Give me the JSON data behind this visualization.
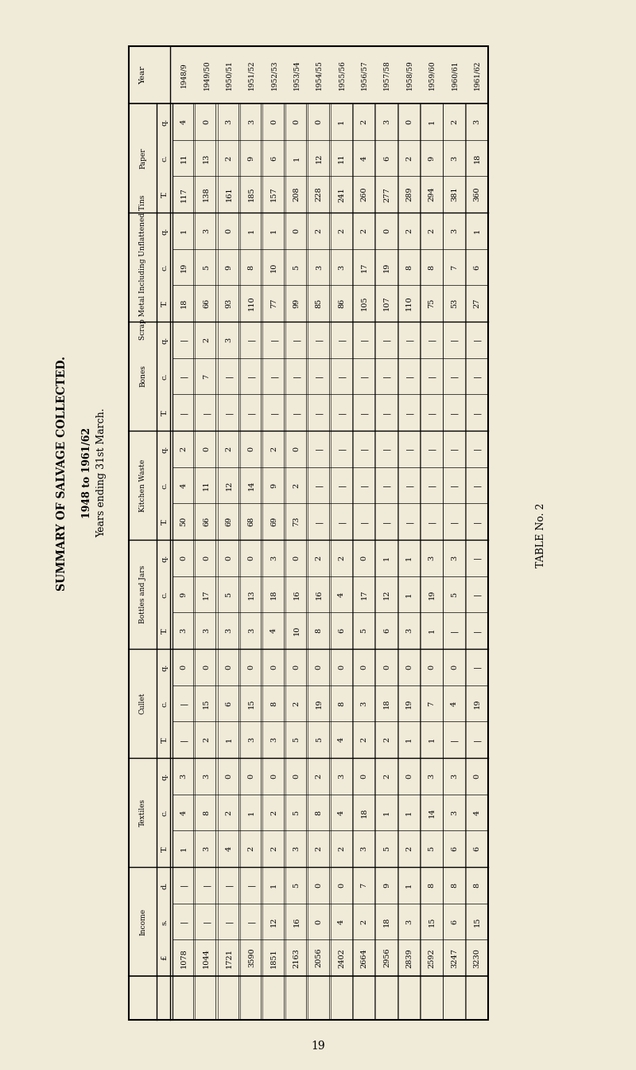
{
  "title": "SUMMARY OF SALVAGE COLLECTED.",
  "subtitle1": "1948 to 1961/62",
  "subtitle2": "Years ending 31st March.",
  "table_no": "TABLE No. 2",
  "page_no": "19",
  "years": [
    "1948/9",
    "1949/50",
    "1950/51",
    "1951/52",
    "1952/53",
    "1953/54",
    "1954/55",
    "1955/56",
    "1956/57",
    "1957/58",
    "1958/59",
    "1959/60",
    "1960/61",
    "1961/62"
  ],
  "paper": {
    "T": [
      "117",
      "138",
      "161",
      "185",
      "157",
      "208",
      "228",
      "241",
      "260",
      "277",
      "289",
      "294",
      "381",
      "360"
    ],
    "c": [
      "11",
      "13",
      "2",
      "9",
      "6",
      "1",
      "12",
      "11",
      "4",
      "6",
      "2",
      "9",
      "3",
      "18"
    ],
    "q": [
      "4",
      "0",
      "3",
      "3",
      "0",
      "0",
      "0",
      "1",
      "2",
      "3",
      "0",
      "1",
      "2",
      "3"
    ]
  },
  "scrap_metal": {
    "T": [
      "18",
      "66",
      "93",
      "110",
      "77",
      "99",
      "85",
      "86",
      "105",
      "107",
      "110",
      "75",
      "53",
      "27"
    ],
    "c": [
      "19",
      "5",
      "9",
      "8",
      "10",
      "5",
      "3",
      "3",
      "17",
      "19",
      "8",
      "8",
      "7",
      "6"
    ],
    "q": [
      "1",
      "3",
      "0",
      "1",
      "1",
      "0",
      "2",
      "2",
      "2",
      "0",
      "2",
      "2",
      "3",
      "1"
    ]
  },
  "bones": {
    "T": [
      "-",
      "-",
      "-",
      "-",
      "-",
      "-",
      "-",
      "-",
      "-",
      "-",
      "-",
      "-",
      "-",
      "-"
    ],
    "c": [
      "-",
      "7",
      "-",
      "-",
      "-",
      "-",
      "-",
      "-",
      "-",
      "-",
      "-",
      "-",
      "-",
      "-"
    ],
    "q": [
      "-",
      "2",
      "3",
      "-",
      "-",
      "-",
      "-",
      "-",
      "-",
      "-",
      "-",
      "-",
      "-",
      "-"
    ]
  },
  "kitchen_waste": {
    "T": [
      "50",
      "66",
      "69",
      "68",
      "69",
      "73",
      "-",
      "-",
      "-",
      "-",
      "-",
      "-",
      "-",
      "-"
    ],
    "c": [
      "4",
      "11",
      "12",
      "14",
      "9",
      "2",
      "-",
      "-",
      "-",
      "-",
      "-",
      "-",
      "-",
      "-"
    ],
    "q": [
      "2",
      "0",
      "2",
      "0",
      "2",
      "0",
      "-",
      "-",
      "-",
      "-",
      "-",
      "-",
      "-",
      "-"
    ]
  },
  "bottles_jars": {
    "T": [
      "3",
      "3",
      "3",
      "3",
      "4",
      "10",
      "8",
      "6",
      "5",
      "6",
      "3",
      "1",
      "-",
      "-"
    ],
    "c": [
      "9",
      "17",
      "5",
      "13",
      "18",
      "16",
      "16",
      "4",
      "17",
      "12",
      "1",
      "19",
      "5",
      "-"
    ],
    "q": [
      "0",
      "0",
      "0",
      "0",
      "3",
      "0",
      "2",
      "2",
      "0",
      "1",
      "1",
      "3",
      "3",
      "-"
    ]
  },
  "cullet": {
    "T": [
      "-",
      "2",
      "1",
      "3",
      "3",
      "5",
      "5",
      "4",
      "2",
      "2",
      "1",
      "1",
      "-",
      "-"
    ],
    "c": [
      "-",
      "15",
      "6",
      "15",
      "8",
      "2",
      "19",
      "8",
      "3",
      "18",
      "19",
      "7",
      "4",
      "19"
    ],
    "q": [
      "0",
      "0",
      "0",
      "0",
      "0",
      "0",
      "0",
      "0",
      "0",
      "0",
      "0",
      "0",
      "0",
      "-"
    ]
  },
  "textiles": {
    "T": [
      "1",
      "3",
      "4",
      "2",
      "2",
      "3",
      "2",
      "2",
      "3",
      "5",
      "2",
      "5",
      "6",
      "6"
    ],
    "c": [
      "4",
      "8",
      "2",
      "1",
      "2",
      "5",
      "8",
      "4",
      "18",
      "1",
      "1",
      "14",
      "3",
      "4"
    ],
    "q": [
      "3",
      "3",
      "0",
      "0",
      "0",
      "0",
      "2",
      "3",
      "0",
      "2",
      "0",
      "3",
      "3",
      "0"
    ]
  },
  "income": {
    "pounds": [
      "1078",
      "1044",
      "1721",
      "3590",
      "1851",
      "2163",
      "2056",
      "2402",
      "2664",
      "2956",
      "2839",
      "2592",
      "3247",
      "3230"
    ],
    "s": [
      "-",
      "-",
      "-",
      "-",
      "12",
      "16",
      "0",
      "4",
      "2",
      "18",
      "3",
      "15",
      "6",
      "15"
    ],
    "d": [
      "-",
      "-",
      "-",
      "-",
      "1",
      "5",
      "0",
      "0",
      "7",
      "9",
      "1",
      "8",
      "8",
      "8"
    ]
  },
  "bg_color": "#f0ead8"
}
